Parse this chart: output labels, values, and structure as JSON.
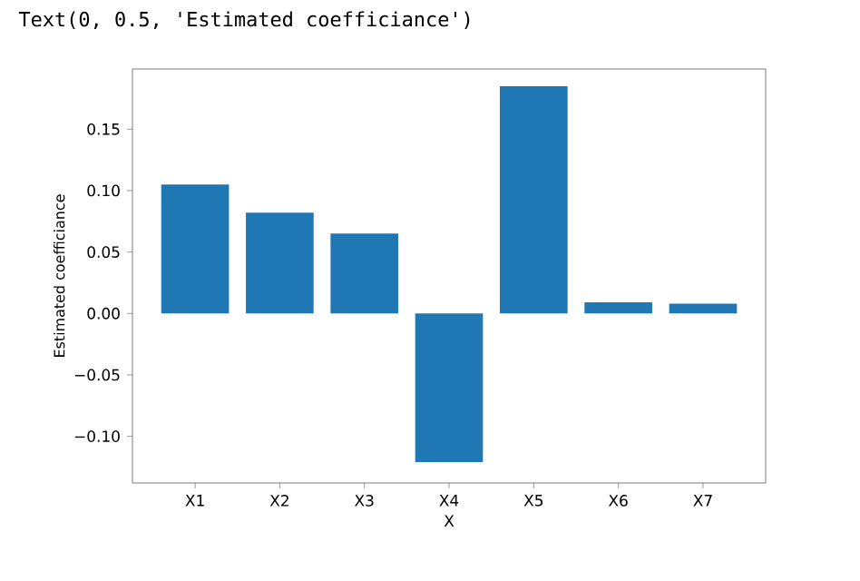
{
  "chart_data": {
    "type": "bar",
    "xlabel": "X",
    "ylabel": "Estimated coefficiance",
    "annotations": [
      "Text(0, 0.5, 'Estimated coefficiance')"
    ],
    "categories": [
      "X1",
      "X2",
      "X3",
      "X4",
      "X5",
      "X6",
      "X7"
    ],
    "values": [
      0.105,
      0.082,
      0.065,
      -0.121,
      0.185,
      0.009,
      0.008
    ],
    "color": "#1f77b4",
    "ylim": [
      -0.138,
      0.199
    ],
    "yticks": [
      {
        "value": -0.1,
        "label": "−0.10"
      },
      {
        "value": -0.05,
        "label": "−0.05"
      },
      {
        "value": 0,
        "label": "0.00"
      },
      {
        "value": 0.05,
        "label": "0.05"
      },
      {
        "value": 0.1,
        "label": "0.10"
      },
      {
        "value": 0.15,
        "label": "0.15"
      }
    ]
  }
}
